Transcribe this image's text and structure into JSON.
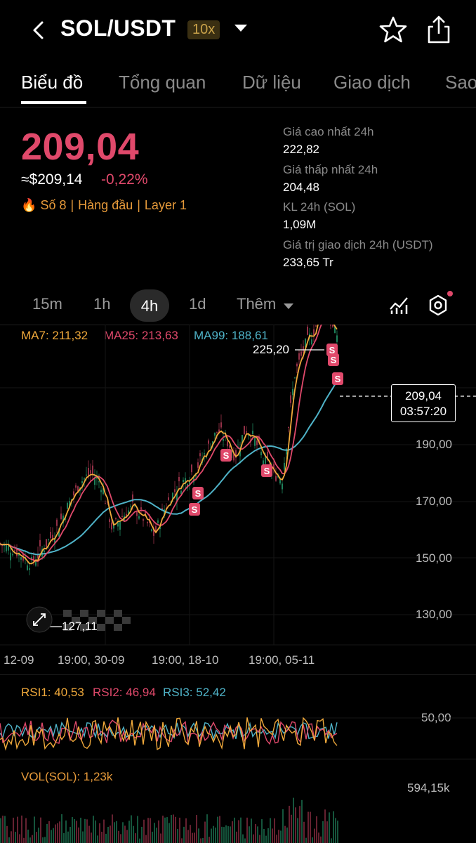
{
  "header": {
    "pair": "SOL/USDT",
    "leverage": "10x"
  },
  "tabs": [
    "Biểu đồ",
    "Tổng quan",
    "Dữ liệu",
    "Giao dịch",
    "Sao"
  ],
  "active_tab": "Biểu đồ",
  "ticker": {
    "last_price": "209,04",
    "usd_price": "≈$209,14",
    "change": "-0,22%",
    "tags": [
      "Số 8",
      "Hàng đầu",
      "Layer 1"
    ]
  },
  "stats": {
    "high_label": "Giá cao nhất 24h",
    "high_value": "222,82",
    "low_label": "Giá thấp nhất 24h",
    "low_value": "204,48",
    "vol_label": "KL 24h (SOL)",
    "vol_value": "1,09M",
    "turnover_label": "Giá trị giao dịch 24h (USDT)",
    "turnover_value": "233,65 Tr"
  },
  "timeframes": [
    "15m",
    "1h",
    "4h",
    "1d",
    "Thêm"
  ],
  "active_timeframe": "4h",
  "indicators": {
    "ma7": "MA7: 211,32",
    "ma25": "MA25: 213,63",
    "ma99": "MA99: 188,61",
    "rsi1": "RSI1: 40,53",
    "rsi2": "RSI2: 46,94",
    "rsi3": "RSI3: 52,42",
    "vol": "VOL(SOL): 1,23k"
  },
  "chart": {
    "high_marker": "225,20",
    "low_marker": "127,11",
    "current_price": "209,04",
    "countdown": "03:57:20",
    "y_ticks": [
      "190,00",
      "170,00",
      "150,00",
      "130,00"
    ],
    "x_ticks": [
      "12-09",
      "19:00, 30-09",
      "19:00, 18-10",
      "19:00, 05-11"
    ],
    "rsi_tick": "50,00",
    "vol_max": "594,15k",
    "sell_marker": "S"
  },
  "colors": {
    "price_down": "#e0496b",
    "ma7": "#f0a93b",
    "ma25": "#e0496b",
    "ma99": "#4fb3c8",
    "tag": "#e69a3a"
  }
}
